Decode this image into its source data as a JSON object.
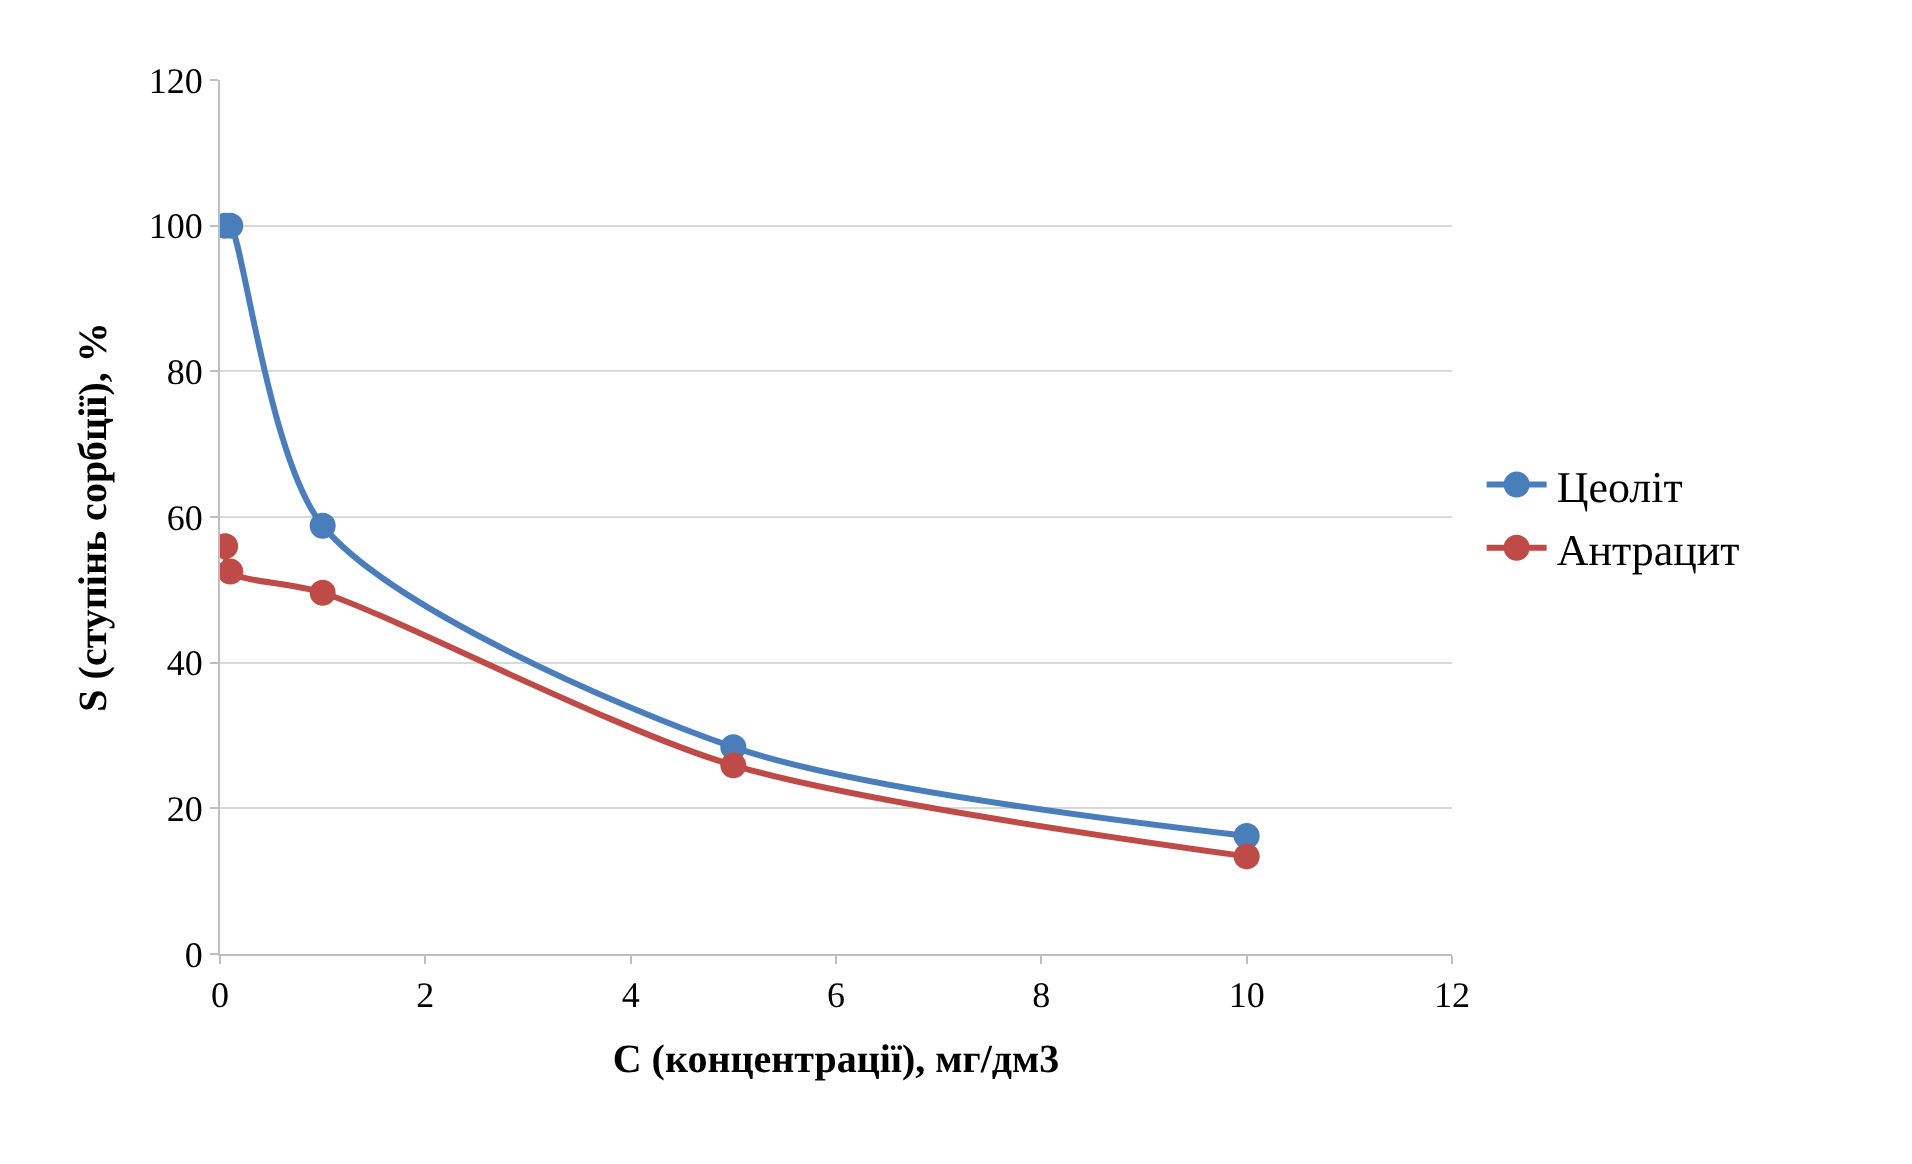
{
  "chart_data": {
    "type": "line",
    "xlabel": "C (концентрації), мг/дм3",
    "ylabel": "S (ступінь сорбції), %",
    "xlim": [
      0,
      12
    ],
    "xticks": [
      0,
      2,
      4,
      6,
      8,
      10,
      12
    ],
    "ylim": [
      0,
      120
    ],
    "yticks": [
      0,
      20,
      40,
      60,
      80,
      100,
      120
    ],
    "grid": "y",
    "legend": "right",
    "marker": "circle",
    "line_style": "solid",
    "series": [
      {
        "name": "Цеоліт",
        "color": "#4a7ebb",
        "x": [
          0.05,
          0.1,
          1,
          5,
          10
        ],
        "values": [
          100,
          100,
          58.8,
          28.4,
          16.2
        ]
      },
      {
        "name": "Антрацит",
        "color": "#be4b48",
        "x": [
          0.05,
          0.1,
          1,
          5,
          10
        ],
        "values": [
          56,
          52.5,
          49.6,
          25.9,
          13.4
        ]
      }
    ]
  }
}
